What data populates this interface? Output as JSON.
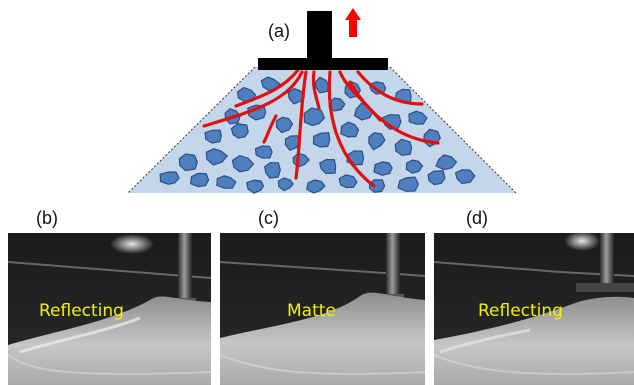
{
  "labels": {
    "a": "(a)",
    "b": "(b)",
    "c": "(c)",
    "d": "(d)"
  },
  "photos": {
    "b": {
      "overlay": "Reflecting"
    },
    "c": {
      "overlay": "Matte"
    },
    "d": {
      "overlay": "Reflecting"
    }
  },
  "colors": {
    "plate": "#000000",
    "arrow": "#ff0000",
    "fracture_lines": "#e01010",
    "particles": "#4f7fbf",
    "particle_edge": "#2d4f86",
    "granular_background": "#c3d6ea",
    "overlay_text": "#f2f200"
  },
  "icons": {
    "arrow": "up-arrow-icon"
  }
}
